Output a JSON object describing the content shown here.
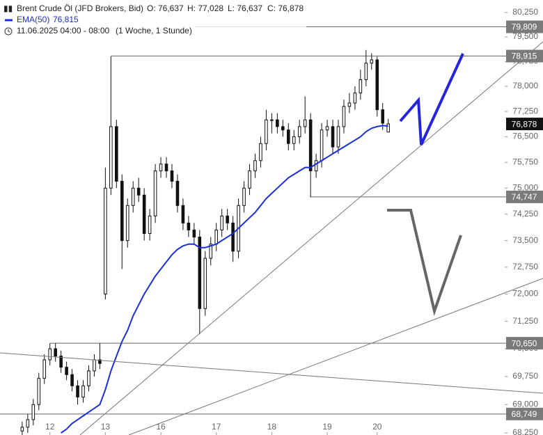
{
  "chart_data": {
    "type": "candlestick",
    "title": "Brent Crude Öl (JFD Brokers, Bid)",
    "ohlc_labels": [
      "O: 76,637",
      "H: 77,028",
      "L: 76,637",
      "C: 76,878"
    ],
    "subtitle": "11.06.2025 04:00 - 08:00",
    "interval": "(1 Woche, 1 Stunde)",
    "log_scale": true,
    "candle_color": "#111111",
    "x": [
      -5,
      -4,
      -3,
      -2,
      -1,
      0,
      1,
      2,
      3,
      4,
      5,
      6,
      7,
      8,
      9,
      10,
      11,
      12,
      13,
      14,
      15,
      16,
      17,
      18,
      19,
      20,
      21,
      22,
      23,
      24,
      25,
      26,
      27,
      28,
      29,
      30,
      31,
      32,
      33,
      34,
      35,
      36,
      37,
      38,
      39,
      40,
      41,
      42,
      43,
      44,
      45,
      46,
      47,
      48,
      49,
      50,
      51,
      52,
      53,
      54,
      55,
      56,
      57,
      58,
      59,
      60,
      61
    ],
    "open": [
      68300,
      68400,
      68600,
      69000,
      69700,
      70200,
      70500,
      70300,
      70000,
      69800,
      69500,
      69200,
      69500,
      69900,
      70200,
      72000,
      75000,
      76800,
      75200,
      73500,
      74500,
      75000,
      74800,
      73700,
      74200,
      75500,
      75700,
      75500,
      75200,
      74500,
      74000,
      73800,
      73600,
      71600,
      73000,
      73400,
      73800,
      74200,
      74000,
      73200,
      74500,
      75000,
      75500,
      75800,
      76300,
      77000,
      77000,
      76800,
      76700,
      76300,
      76500,
      76800,
      77000,
      75500,
      75800,
      76700,
      76800,
      76200,
      76800,
      77400,
      77500,
      77800,
      78200,
      78700,
      78800,
      77300,
      76637
    ],
    "high": [
      68550,
      68750,
      69150,
      69850,
      70350,
      70650,
      70650,
      70450,
      70150,
      69950,
      69650,
      69650,
      70050,
      70350,
      70650,
      75600,
      78915,
      77000,
      75400,
      74700,
      75200,
      75300,
      75000,
      74400,
      75700,
      75900,
      75900,
      75700,
      75400,
      74700,
      74200,
      74000,
      73800,
      73200,
      73600,
      74000,
      74400,
      74400,
      74200,
      74700,
      75200,
      75700,
      76000,
      76500,
      77300,
      77200,
      77200,
      77000,
      76900,
      76700,
      77000,
      77700,
      77200,
      76000,
      76900,
      77000,
      77000,
      77000,
      77600,
      77800,
      78000,
      78500,
      79100,
      79000,
      78900,
      77500,
      77028
    ],
    "low": [
      68150,
      68250,
      68450,
      68850,
      69550,
      70050,
      70150,
      69850,
      69650,
      69350,
      69000,
      69050,
      69350,
      69750,
      69950,
      71850,
      74800,
      75000,
      72700,
      73300,
      74300,
      74600,
      73500,
      73500,
      74000,
      75300,
      75300,
      75000,
      74300,
      73800,
      73600,
      73400,
      70900,
      71400,
      72800,
      73200,
      73600,
      73800,
      72900,
      73000,
      74300,
      74800,
      75300,
      75600,
      76100,
      76600,
      76600,
      76500,
      76100,
      76100,
      76300,
      76600,
      74747,
      75300,
      75600,
      76500,
      76000,
      76000,
      76600,
      77200,
      77300,
      77600,
      78000,
      78500,
      77100,
      76700,
      76637
    ],
    "close": [
      68400,
      68600,
      69000,
      69700,
      70200,
      70500,
      70300,
      70000,
      69800,
      69500,
      69200,
      69500,
      69900,
      70200,
      70100,
      75000,
      76800,
      75200,
      73500,
      74500,
      75000,
      74800,
      73700,
      74200,
      75500,
      75700,
      75500,
      75200,
      74500,
      74000,
      73800,
      73600,
      71600,
      73000,
      73400,
      73800,
      74200,
      74000,
      73200,
      74500,
      75000,
      75500,
      75800,
      76300,
      77000,
      77000,
      76800,
      76700,
      76300,
      76500,
      76800,
      77000,
      75500,
      75800,
      76700,
      76800,
      76200,
      76800,
      77400,
      77500,
      77800,
      78200,
      78700,
      78800,
      77300,
      76900,
      76878
    ],
    "series": [
      {
        "name": "EMA(50)",
        "color": "#1a2fdc",
        "value_label": "76,815",
        "values": [
          null,
          null,
          null,
          null,
          null,
          null,
          null,
          68250,
          68350,
          68500,
          68600,
          68700,
          68800,
          68900,
          69000,
          69400,
          69900,
          70300,
          70700,
          71000,
          71400,
          71700,
          72000,
          72250,
          72500,
          72700,
          72900,
          73100,
          73250,
          73350,
          73400,
          73400,
          73300,
          73300,
          73350,
          73400,
          73500,
          73600,
          73700,
          73850,
          74000,
          74150,
          74300,
          74500,
          74700,
          74850,
          75000,
          75150,
          75300,
          75400,
          75500,
          75600,
          75600,
          75700,
          75800,
          75900,
          76000,
          76100,
          76200,
          76300,
          76400,
          76500,
          76650,
          76750,
          76800,
          76830,
          76815
        ]
      }
    ],
    "xlim": [
      -9,
      82
    ],
    "xticks": [
      {
        "value": 0,
        "label": "12"
      },
      {
        "value": 10,
        "label": "13"
      },
      {
        "value": 20,
        "label": "16"
      },
      {
        "value": 30,
        "label": "17"
      },
      {
        "value": 40,
        "label": "18"
      },
      {
        "value": 50,
        "label": "19"
      },
      {
        "value": 59,
        "label": "20"
      }
    ],
    "ylim": [
      68250,
      80250
    ],
    "yticks": [
      {
        "value": 68250,
        "label": "68,250"
      },
      {
        "value": 69000,
        "label": "69,000"
      },
      {
        "value": 69750,
        "label": "69,750"
      },
      {
        "value": 70500,
        "label": "70,500"
      },
      {
        "value": 71250,
        "label": "71,250"
      },
      {
        "value": 72000,
        "label": "72,000"
      },
      {
        "value": 72750,
        "label": "72,750"
      },
      {
        "value": 73500,
        "label": "73,500"
      },
      {
        "value": 74250,
        "label": "74,250"
      },
      {
        "value": 75000,
        "label": "75,000"
      },
      {
        "value": 75750,
        "label": "75,750"
      },
      {
        "value": 76500,
        "label": "76,500"
      },
      {
        "value": 77250,
        "label": "77,250"
      },
      {
        "value": 78000,
        "label": "78,000"
      },
      {
        "value": 78750,
        "label": "78,750"
      },
      {
        "value": 79500,
        "label": "79,500"
      },
      {
        "value": 80250,
        "label": "80,250"
      }
    ],
    "levels": [
      {
        "value": 79809,
        "label": "79,809"
      },
      {
        "value": 78915,
        "label": "78,915"
      },
      {
        "value": 74747,
        "label": "74,747"
      },
      {
        "value": 70650,
        "label": "70,650"
      },
      {
        "value": 68749,
        "label": "68,749"
      }
    ],
    "last_price": {
      "value": 76878,
      "label": "76,878"
    }
  }
}
